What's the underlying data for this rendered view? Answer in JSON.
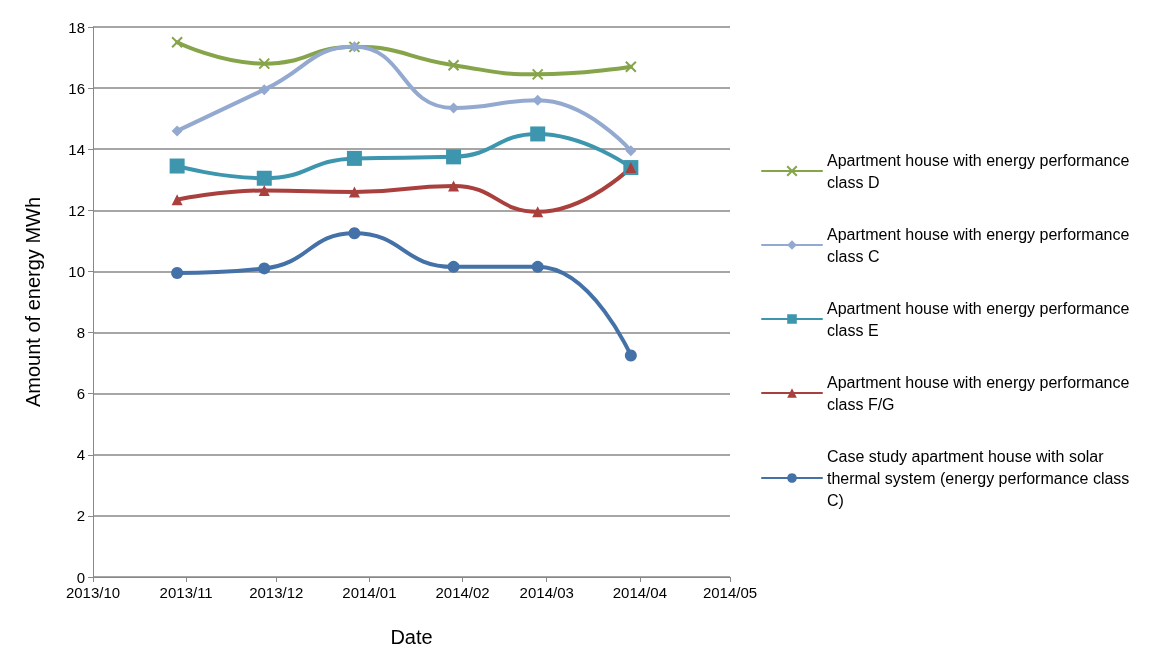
{
  "chart_data": {
    "type": "line",
    "xlabel": "Date",
    "ylabel": "Amount of energy MWh",
    "x": [
      "2013-10-29",
      "2013-11-27",
      "2013-12-27",
      "2014-01-29",
      "2014-02-26",
      "2014-03-29"
    ],
    "series": [
      {
        "name": "Apartment house with energy performance class D",
        "color": "#86a44a",
        "marker": "cross",
        "values": [
          17.5,
          16.8,
          17.35,
          16.75,
          16.45,
          16.7
        ]
      },
      {
        "name": "Apartment house with energy performance class C",
        "color": "#93a9d0",
        "marker": "diamond",
        "values": [
          14.6,
          15.95,
          17.35,
          15.35,
          15.6,
          13.95
        ]
      },
      {
        "name": "Apartment house with energy performance class E",
        "color": "#3d96ae",
        "marker": "square",
        "values": [
          13.45,
          13.05,
          13.7,
          13.75,
          14.5,
          13.4
        ]
      },
      {
        "name": "Apartment house with energy performance class F/G",
        "color": "#a9403e",
        "marker": "triangle",
        "values": [
          12.35,
          12.65,
          12.6,
          12.8,
          11.95,
          13.4
        ]
      },
      {
        "name": "Case study apartment house with solar thermal system (energy performance class C)",
        "color": "#4471a7",
        "marker": "circle",
        "values": [
          9.95,
          10.1,
          11.25,
          10.15,
          10.15,
          7.25
        ]
      }
    ],
    "xlim": [
      "2013-10-01",
      "2014-05-01"
    ],
    "xticks": [
      {
        "value": "2013-10-01",
        "label": "2013/10"
      },
      {
        "value": "2013-11-01",
        "label": "2013/11"
      },
      {
        "value": "2013-12-01",
        "label": "2013/12"
      },
      {
        "value": "2014-01-01",
        "label": "2014/01"
      },
      {
        "value": "2014-02-01",
        "label": "2014/02"
      },
      {
        "value": "2014-03-01",
        "label": "2014/03"
      },
      {
        "value": "2014-04-01",
        "label": "2014/04"
      },
      {
        "value": "2014-05-01",
        "label": "2014/05"
      }
    ],
    "ylim": [
      0,
      18
    ],
    "yticks": [
      0,
      2,
      4,
      6,
      8,
      10,
      12,
      14,
      16,
      18
    ],
    "grid": "y",
    "legend": "right",
    "line_style": "solid"
  }
}
